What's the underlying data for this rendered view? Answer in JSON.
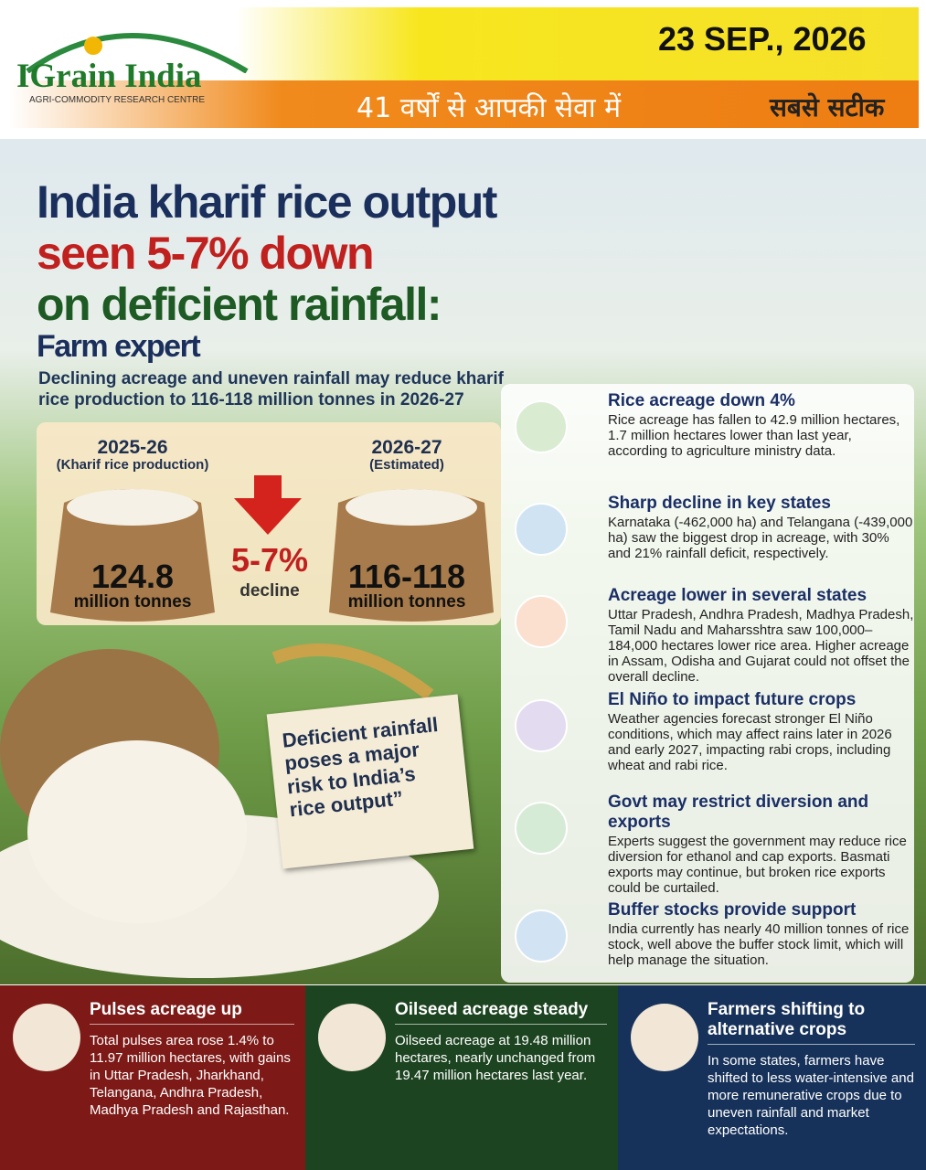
{
  "header": {
    "logo_title": "IGrain India",
    "logo_subtitle": "AGRI-COMMODITY RESEARCH CENTRE",
    "date": "23 SEP., 2026",
    "tagline": "41 वर्षों से आपकी सेवा में",
    "slogan": "सबसे सटीक"
  },
  "headline": {
    "lines": [
      "India kharif rice output",
      "seen 5-7% down",
      "on deficient rainfall:",
      "Farm expert"
    ],
    "subtitle": "Declining acreage and uneven rainfall may reduce kharif rice production to 116-118 million tonnes in 2026-27"
  },
  "comparison": {
    "left": {
      "year": "2025-26",
      "note": "(Kharif rice production)",
      "value": "124.8",
      "unit": "million tonnes"
    },
    "change": {
      "value": "5-7%",
      "label": "decline"
    },
    "right": {
      "year": "2026-27",
      "note": "(Estimated)",
      "value": "116-118",
      "unit": "million tonnes"
    }
  },
  "quote": "Deficient rainfall poses a major risk to India’s rice output”",
  "points": [
    {
      "title": "Rice acreage down 4%",
      "text": "Rice acreage has fallen to 42.9 million hectares, 1.7 million hectares lower than last year, according to agriculture ministry data."
    },
    {
      "title": "Sharp decline in key states",
      "text": "Karnataka (-462,000 ha) and Telangana (-439,000 ha) saw the biggest drop in acreage, with 30% and 21% rainfall deficit, respectively."
    },
    {
      "title": "Acreage lower in several states",
      "text": "Uttar Pradesh, Andhra Pradesh, Madhya Pradesh, Tamil Nadu and Maharsshtra saw 100,000–184,000 hectares lower rice area. Higher acreage in Assam, Odisha and Gujarat could not offset the overall decline."
    },
    {
      "title": "El Niño to impact future crops",
      "text": "Weather agencies forecast stronger El Niño conditions, which may affect rains later in 2026 and early 2027, impacting rabi crops, including wheat and rabi rice."
    },
    {
      "title": "Govt may restrict diversion and exports",
      "text": "Experts suggest the government may reduce rice diversion for ethanol and cap exports. Basmati exports may continue, but broken rice exports could be curtailed."
    },
    {
      "title": "Buffer stocks provide support",
      "text": "India currently has nearly 40 million tonnes of rice stock, well above the buffer stock limit, which will help manage the situation."
    }
  ],
  "footer": [
    {
      "title": "Pulses acreage up",
      "text": "Total pulses area rose 1.4% to 11.97 million hectares, with gains in Uttar Pradesh, Jharkhand, Telangana, Andhra Pradesh, Madhya Pradesh and Rajasthan."
    },
    {
      "title": "Oilseed acreage steady",
      "text": "Oilseed acreage at 19.48 million hectares, nearly unchanged from 19.47 million hectares last year."
    },
    {
      "title": "Farmers shifting to alternative crops",
      "text": "In some states, farmers have shifted to less water-intensive and more remunerative crops due to uneven rainfall and market expectations."
    }
  ]
}
